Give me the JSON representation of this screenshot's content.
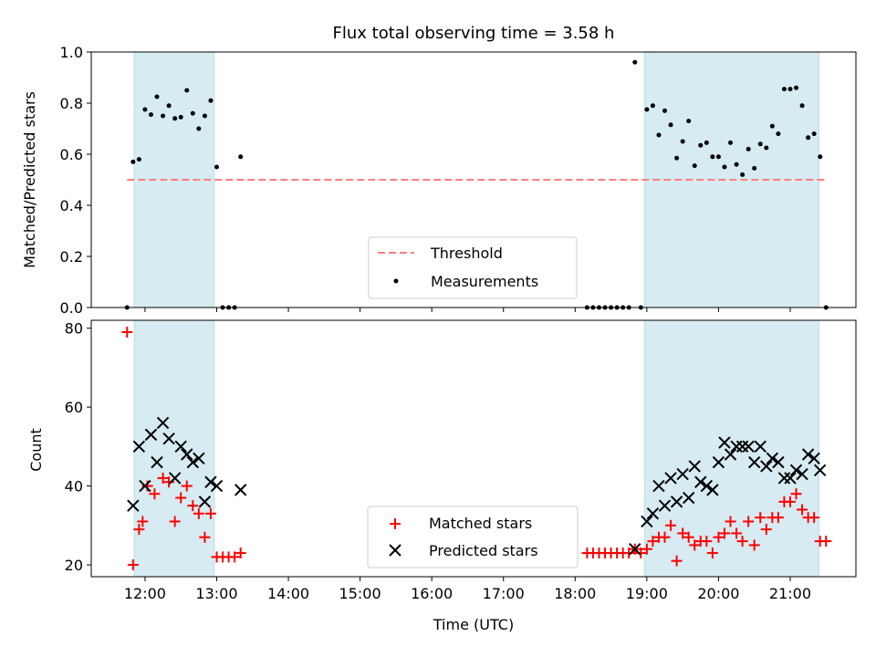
{
  "chart_data": [
    {
      "type": "scatter",
      "title": "Flux total observing time = 3.58 h",
      "ylabel": "Matched/Predicted stars",
      "ylim": [
        0,
        1.0
      ],
      "yticks": [
        "0.0",
        "0.2",
        "0.4",
        "0.6",
        "0.8",
        "1.0"
      ],
      "threshold": {
        "name": "Threshold",
        "value": 0.5,
        "color": "#ff7f7f"
      },
      "shaded_regions": [
        {
          "start": "11:51",
          "end": "12:58",
          "color": "#add8e6"
        },
        {
          "start": "18:58",
          "end": "21:24",
          "color": "#add8e6"
        }
      ],
      "legend_position": "lower center",
      "series": [
        {
          "name": "Measurements",
          "color": "#000000",
          "points": [
            [
              "11:45",
              0.0
            ],
            [
              "11:50",
              0.57
            ],
            [
              "11:55",
              0.58
            ],
            [
              "12:00",
              0.775
            ],
            [
              "12:05",
              0.755
            ],
            [
              "12:10",
              0.825
            ],
            [
              "12:15",
              0.75
            ],
            [
              "12:20",
              0.79
            ],
            [
              "12:25",
              0.74
            ],
            [
              "12:30",
              0.745
            ],
            [
              "12:35",
              0.85
            ],
            [
              "12:40",
              0.76
            ],
            [
              "12:45",
              0.7
            ],
            [
              "12:50",
              0.75
            ],
            [
              "12:55",
              0.81
            ],
            [
              "13:00",
              0.55
            ],
            [
              "13:05",
              0.0
            ],
            [
              "13:10",
              0.0
            ],
            [
              "13:15",
              0.0
            ],
            [
              "13:20",
              0.59
            ],
            [
              "18:10",
              0.0
            ],
            [
              "18:15",
              0.0
            ],
            [
              "18:20",
              0.0
            ],
            [
              "18:25",
              0.0
            ],
            [
              "18:30",
              0.0
            ],
            [
              "18:35",
              0.0
            ],
            [
              "18:40",
              0.0
            ],
            [
              "18:45",
              0.0
            ],
            [
              "18:50",
              0.96
            ],
            [
              "18:55",
              0.0
            ],
            [
              "19:00",
              0.775
            ],
            [
              "19:05",
              0.79
            ],
            [
              "19:10",
              0.675
            ],
            [
              "19:15",
              0.77
            ],
            [
              "19:20",
              0.715
            ],
            [
              "19:25",
              0.585
            ],
            [
              "19:30",
              0.65
            ],
            [
              "19:35",
              0.73
            ],
            [
              "19:40",
              0.555
            ],
            [
              "19:45",
              0.635
            ],
            [
              "19:50",
              0.645
            ],
            [
              "19:55",
              0.59
            ],
            [
              "20:00",
              0.59
            ],
            [
              "20:05",
              0.55
            ],
            [
              "20:10",
              0.645
            ],
            [
              "20:15",
              0.56
            ],
            [
              "20:20",
              0.52
            ],
            [
              "20:25",
              0.62
            ],
            [
              "20:30",
              0.545
            ],
            [
              "20:35",
              0.64
            ],
            [
              "20:40",
              0.625
            ],
            [
              "20:45",
              0.71
            ],
            [
              "20:50",
              0.68
            ],
            [
              "20:55",
              0.855
            ],
            [
              "21:00",
              0.855
            ],
            [
              "21:05",
              0.86
            ],
            [
              "21:10",
              0.79
            ],
            [
              "21:15",
              0.665
            ],
            [
              "21:20",
              0.68
            ],
            [
              "21:25",
              0.59
            ],
            [
              "21:30",
              0.0
            ]
          ]
        }
      ]
    },
    {
      "type": "scatter",
      "xlabel": "Time (UTC)",
      "ylabel": "Count",
      "ylim": [
        17,
        82
      ],
      "yticks": [
        "20",
        "40",
        "60",
        "80"
      ],
      "xticks": [
        "12:00",
        "13:00",
        "14:00",
        "15:00",
        "16:00",
        "17:00",
        "18:00",
        "19:00",
        "20:00",
        "21:00"
      ],
      "xlim": [
        "11:15",
        "21:55"
      ],
      "legend_position": "lower center",
      "series": [
        {
          "name": "Matched stars",
          "color": "#ff0000",
          "marker": "plus",
          "points": [
            [
              "11:45",
              79
            ],
            [
              "11:50",
              20
            ],
            [
              "11:55",
              29
            ],
            [
              "11:58",
              31
            ],
            [
              "12:02",
              40
            ],
            [
              "12:08",
              38
            ],
            [
              "12:15",
              42
            ],
            [
              "12:20",
              41
            ],
            [
              "12:25",
              31
            ],
            [
              "12:30",
              37
            ],
            [
              "12:35",
              40
            ],
            [
              "12:40",
              35
            ],
            [
              "12:45",
              33
            ],
            [
              "12:50",
              27
            ],
            [
              "12:55",
              33
            ],
            [
              "13:00",
              22
            ],
            [
              "13:05",
              22
            ],
            [
              "13:10",
              22
            ],
            [
              "13:15",
              22
            ],
            [
              "13:20",
              23
            ],
            [
              "18:10",
              23
            ],
            [
              "18:15",
              23
            ],
            [
              "18:20",
              23
            ],
            [
              "18:25",
              23
            ],
            [
              "18:30",
              23
            ],
            [
              "18:35",
              23
            ],
            [
              "18:40",
              23
            ],
            [
              "18:45",
              23
            ],
            [
              "18:50",
              24
            ],
            [
              "18:55",
              23
            ],
            [
              "19:00",
              24
            ],
            [
              "19:05",
              26
            ],
            [
              "19:10",
              27
            ],
            [
              "19:15",
              27
            ],
            [
              "19:20",
              30
            ],
            [
              "19:25",
              21
            ],
            [
              "19:30",
              28
            ],
            [
              "19:35",
              27
            ],
            [
              "19:40",
              25
            ],
            [
              "19:45",
              26
            ],
            [
              "19:50",
              26
            ],
            [
              "19:55",
              23
            ],
            [
              "20:00",
              27
            ],
            [
              "20:05",
              28
            ],
            [
              "20:10",
              31
            ],
            [
              "20:15",
              28
            ],
            [
              "20:20",
              26
            ],
            [
              "20:25",
              31
            ],
            [
              "20:30",
              25
            ],
            [
              "20:35",
              32
            ],
            [
              "20:40",
              29
            ],
            [
              "20:45",
              32
            ],
            [
              "20:50",
              32
            ],
            [
              "20:55",
              36
            ],
            [
              "21:00",
              36
            ],
            [
              "21:05",
              38
            ],
            [
              "21:10",
              34
            ],
            [
              "21:15",
              32
            ],
            [
              "21:20",
              32
            ],
            [
              "21:25",
              26
            ],
            [
              "21:30",
              26
            ]
          ]
        },
        {
          "name": "Predicted stars",
          "color": "#000000",
          "marker": "x",
          "points": [
            [
              "11:50",
              35
            ],
            [
              "11:55",
              50
            ],
            [
              "12:00",
              40
            ],
            [
              "12:05",
              53
            ],
            [
              "12:10",
              46
            ],
            [
              "12:15",
              56
            ],
            [
              "12:20",
              52
            ],
            [
              "12:25",
              42
            ],
            [
              "12:30",
              50
            ],
            [
              "12:35",
              48
            ],
            [
              "12:40",
              46
            ],
            [
              "12:45",
              47
            ],
            [
              "12:50",
              36
            ],
            [
              "12:55",
              41
            ],
            [
              "13:00",
              40
            ],
            [
              "13:20",
              39
            ],
            [
              "18:50",
              24
            ],
            [
              "19:00",
              31
            ],
            [
              "19:05",
              33
            ],
            [
              "19:10",
              40
            ],
            [
              "19:15",
              35
            ],
            [
              "19:20",
              42
            ],
            [
              "19:25",
              36
            ],
            [
              "19:30",
              43
            ],
            [
              "19:35",
              37
            ],
            [
              "19:40",
              45
            ],
            [
              "19:45",
              41
            ],
            [
              "19:50",
              40
            ],
            [
              "19:55",
              39
            ],
            [
              "20:00",
              46
            ],
            [
              "20:05",
              51
            ],
            [
              "20:10",
              48
            ],
            [
              "20:15",
              50
            ],
            [
              "20:20",
              50
            ],
            [
              "20:25",
              50
            ],
            [
              "20:30",
              46
            ],
            [
              "20:35",
              50
            ],
            [
              "20:40",
              45
            ],
            [
              "20:45",
              47
            ],
            [
              "20:50",
              46
            ],
            [
              "20:55",
              42
            ],
            [
              "21:00",
              42
            ],
            [
              "21:05",
              44
            ],
            [
              "21:10",
              43
            ],
            [
              "21:15",
              48
            ],
            [
              "21:20",
              47
            ],
            [
              "21:25",
              44
            ]
          ]
        }
      ]
    }
  ]
}
